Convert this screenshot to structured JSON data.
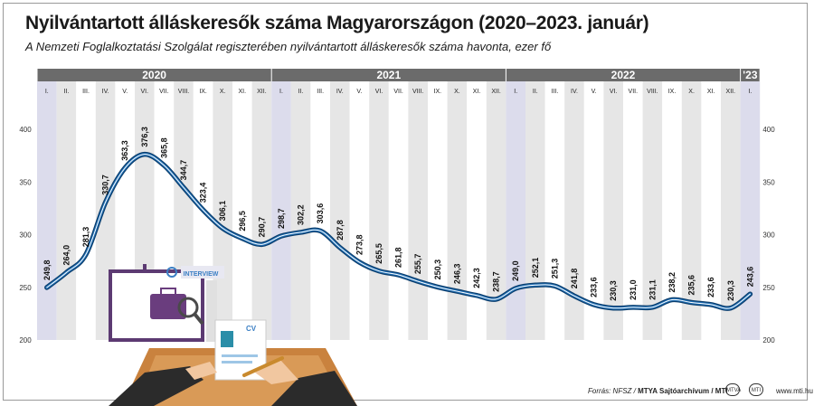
{
  "title": "Nyilvántartott álláskeresők száma Magyarországon (2020–2023. január)",
  "subtitle": "A Nemzeti Foglalkoztatási Szolgálat regiszterében nyilvántartott álláskeresők száma havonta, ezer fő",
  "footer": {
    "source_prefix": "Forrás: NFSZ / ",
    "archive": "MTYA Sajtóarchívum / MTI",
    "website": "www.mti.hu",
    "logo_1": "MTVA",
    "logo_2": "MTI"
  },
  "illustration": {
    "sign_text": "INTERVIEW",
    "doc_text": "CV"
  },
  "colors": {
    "line": "#1f6fb5",
    "year_band": "#6b6b6b",
    "month_band_alt": "#e6e6e6",
    "january_shade": "#dcdcec"
  },
  "chart_data": {
    "type": "line",
    "title": "Nyilvántartott álláskeresők száma Magyarországon (2020–2023. január)",
    "subtitle": "A Nemzeti Foglalkoztatási Szolgálat regiszterében nyilvántartott álláskeresők száma havonta, ezer fő",
    "years": [
      {
        "label": "2020",
        "months": 12
      },
      {
        "label": "2021",
        "months": 12
      },
      {
        "label": "2022",
        "months": 12
      },
      {
        "label": "'23",
        "months": 1
      }
    ],
    "categories": [
      "I.",
      "II.",
      "III.",
      "IV.",
      "V.",
      "VI.",
      "VII.",
      "VIII.",
      "IX.",
      "X.",
      "XI.",
      "XII.",
      "I.",
      "II.",
      "III.",
      "IV.",
      "V.",
      "VI.",
      "VII.",
      "VIII.",
      "IX.",
      "X.",
      "XI.",
      "XII.",
      "I.",
      "II.",
      "III.",
      "IV.",
      "V.",
      "VI.",
      "VII.",
      "VIII.",
      "IX.",
      "X.",
      "XI.",
      "XII.",
      "I."
    ],
    "series": [
      {
        "values": [
          249.8,
          264.0,
          281.3,
          330.7,
          363.3,
          376.3,
          365.8,
          344.7,
          323.4,
          306.1,
          296.5,
          290.7,
          298.7,
          302.2,
          303.6,
          287.8,
          273.8,
          265.5,
          261.8,
          255.7,
          250.3,
          246.3,
          242.3,
          238.7,
          249.0,
          252.1,
          251.3,
          241.8,
          233.6,
          230.3,
          231.0,
          231.1,
          238.2,
          235.6,
          233.6,
          230.3,
          243.6
        ],
        "labels": [
          "249,8",
          "264,0",
          "281,3",
          "330,7",
          "363,3",
          "376,3",
          "365,8",
          "344,7",
          "323,4",
          "306,1",
          "296,5",
          "290,7",
          "298,7",
          "302,2",
          "303,6",
          "287,8",
          "273,8",
          "265,5",
          "261,8",
          "255,7",
          "250,3",
          "246,3",
          "242,3",
          "238,7",
          "249,0",
          "252,1",
          "251,3",
          "241,8",
          "233,6",
          "230,3",
          "231,0",
          "231,1",
          "238,2",
          "235,6",
          "233,6",
          "230,3",
          "243,6"
        ]
      }
    ],
    "y_ticks": [
      "400",
      "350",
      "300",
      "250",
      "200"
    ],
    "y_tick_values": [
      400,
      350,
      300,
      250,
      200
    ],
    "ylim": [
      200,
      400
    ],
    "grid": false,
    "legend": "none"
  }
}
